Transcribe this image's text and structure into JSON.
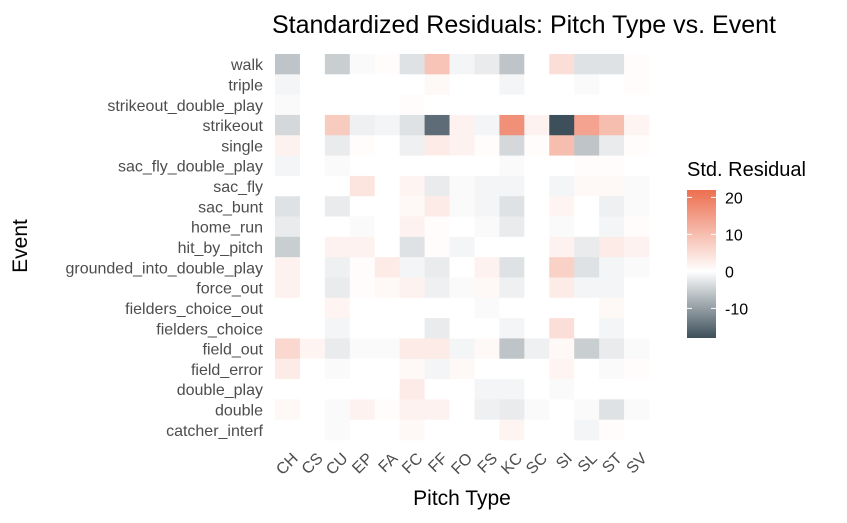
{
  "chart_data": {
    "type": "heatmap",
    "title": "Standardized Residuals: Pitch Type vs. Event",
    "xlabel": "Pitch Type",
    "ylabel": "Event",
    "x_categories": [
      "CH",
      "CS",
      "CU",
      "EP",
      "FA",
      "FC",
      "FF",
      "FO",
      "FS",
      "KC",
      "SC",
      "SI",
      "SL",
      "ST",
      "SV"
    ],
    "y_categories": [
      "walk",
      "triple",
      "strikeout_double_play",
      "strikeout",
      "single",
      "sac_fly_double_play",
      "sac_fly",
      "sac_bunt",
      "home_run",
      "hit_by_pitch",
      "grounded_into_double_play",
      "force_out",
      "fielders_choice_out",
      "fielders_choice",
      "field_out",
      "field_error",
      "double_play",
      "double",
      "catcher_interf"
    ],
    "values": [
      [
        -6,
        0,
        -5,
        -0.5,
        0.5,
        -3,
        9,
        -1,
        -2,
        -6,
        0,
        5,
        -3,
        -3,
        0.5
      ],
      [
        -1,
        0,
        0,
        0,
        0,
        0,
        1,
        0,
        0,
        -1,
        0,
        0,
        -0.5,
        0,
        0.5
      ],
      [
        -0.5,
        0,
        0,
        0,
        0,
        0.5,
        0,
        0,
        0,
        0,
        0,
        0,
        0,
        0,
        0
      ],
      [
        -4,
        0,
        8,
        -1.5,
        -1,
        -3,
        -15,
        2,
        -1,
        17,
        2,
        -18,
        14,
        10,
        1.5
      ],
      [
        2,
        0,
        -2,
        0.5,
        0,
        -1.5,
        3,
        2,
        0.5,
        -4,
        0.5,
        10,
        -6,
        -2,
        0.5
      ],
      [
        -1,
        0,
        -0.5,
        0,
        0,
        0,
        0,
        0,
        0,
        -0.5,
        0,
        0,
        0.5,
        0.5,
        0
      ],
      [
        0,
        0,
        0,
        4,
        0,
        1.5,
        -2,
        -0.5,
        -1,
        -1,
        0,
        -1,
        1,
        1,
        -0.5
      ],
      [
        -3,
        0,
        -2,
        0,
        0,
        1,
        3,
        -0.5,
        -1,
        -3,
        0,
        1.5,
        0,
        -1.5,
        -0.5
      ],
      [
        -2,
        0,
        0,
        -0.5,
        0,
        2,
        0.5,
        0,
        -0.5,
        -2,
        0,
        -0.5,
        0,
        -1,
        0.5
      ],
      [
        -5,
        0,
        2,
        2,
        0,
        -3,
        0.5,
        -1,
        0,
        0,
        0,
        2,
        -2,
        3,
        2
      ],
      [
        2,
        0,
        -1.5,
        0.5,
        3,
        -1,
        -2,
        0,
        2,
        -3,
        0,
        7,
        -3,
        -1,
        -0.5
      ],
      [
        2,
        0,
        -2,
        0.5,
        1,
        2,
        -1.5,
        -0.5,
        1,
        -1.5,
        0,
        3,
        -1,
        -1,
        0
      ],
      [
        0,
        0,
        1.5,
        0,
        0,
        0,
        0,
        0,
        -0.5,
        0,
        0,
        0,
        0,
        1,
        0
      ],
      [
        0,
        0,
        -1,
        0,
        0,
        0,
        -2,
        0,
        0,
        -1,
        0,
        5,
        0,
        -1,
        0
      ],
      [
        6,
        1.5,
        -2,
        -0.5,
        -0.5,
        3,
        3,
        -1,
        1,
        -6,
        -1.5,
        1,
        -5,
        -2,
        -0.5
      ],
      [
        3,
        0,
        -0.5,
        0,
        0,
        1,
        -1,
        1,
        0,
        0,
        0,
        1.5,
        0,
        -0.5,
        0.5
      ],
      [
        0,
        0,
        0,
        0,
        0,
        3,
        0,
        0,
        -1,
        -1,
        0,
        -0.5,
        0,
        0,
        0
      ],
      [
        1,
        0,
        -0.5,
        2,
        0.5,
        2,
        2,
        0,
        -1.5,
        -2,
        -0.5,
        0,
        -0.5,
        -3,
        -0.5
      ],
      [
        0,
        0,
        -0.5,
        0,
        0,
        1,
        0,
        0,
        0,
        1.5,
        0,
        0,
        -1,
        0.5,
        0
      ]
    ],
    "color_scale": {
      "low": "#3d4f5a",
      "mid": "#ffffff",
      "high": "#ec6f50",
      "domain": [
        -18,
        0,
        22
      ]
    },
    "legend": {
      "title": "Std. Residual",
      "ticks": [
        20,
        10,
        0,
        -10
      ],
      "placement": "right"
    },
    "grid": false
  }
}
